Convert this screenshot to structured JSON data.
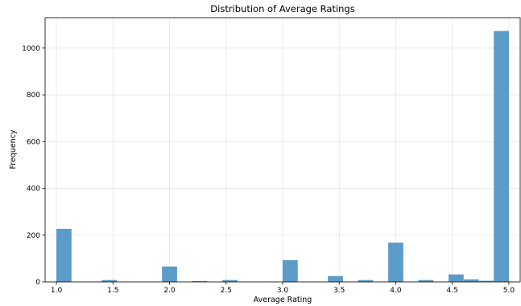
{
  "chart_data": {
    "type": "bar",
    "title": "Distribution of Average Ratings",
    "xlabel": "Average Rating",
    "ylabel": "Frequency",
    "xlim": [
      0.9,
      5.1
    ],
    "ylim": [
      0,
      1130
    ],
    "xticks": [
      "1.0",
      "1.5",
      "2.0",
      "2.5",
      "3.0",
      "3.5",
      "4.0",
      "4.5",
      "5.0"
    ],
    "yticks": [
      "0",
      "200",
      "400",
      "600",
      "800",
      "1000"
    ],
    "grid": true,
    "bin_width": 0.1333,
    "bar_color": "#5b9bc8",
    "bins": [
      {
        "x": 1.0667,
        "count": 227
      },
      {
        "x": 1.2,
        "count": 0
      },
      {
        "x": 1.3333,
        "count": 0
      },
      {
        "x": 1.4667,
        "count": 8
      },
      {
        "x": 1.6,
        "count": 0
      },
      {
        "x": 1.7333,
        "count": 0
      },
      {
        "x": 1.8667,
        "count": 0
      },
      {
        "x": 2.0,
        "count": 66
      },
      {
        "x": 2.1333,
        "count": 0
      },
      {
        "x": 2.2667,
        "count": 4
      },
      {
        "x": 2.4,
        "count": 0
      },
      {
        "x": 2.5333,
        "count": 8
      },
      {
        "x": 2.6667,
        "count": 0
      },
      {
        "x": 2.8,
        "count": 0
      },
      {
        "x": 2.9333,
        "count": 0
      },
      {
        "x": 3.0667,
        "count": 93
      },
      {
        "x": 3.2,
        "count": 0
      },
      {
        "x": 3.3333,
        "count": 0
      },
      {
        "x": 3.4667,
        "count": 25
      },
      {
        "x": 3.6,
        "count": 0
      },
      {
        "x": 3.7333,
        "count": 8
      },
      {
        "x": 3.8667,
        "count": 0
      },
      {
        "x": 4.0,
        "count": 168
      },
      {
        "x": 4.1333,
        "count": 0
      },
      {
        "x": 4.2667,
        "count": 8
      },
      {
        "x": 4.4,
        "count": 0
      },
      {
        "x": 4.5333,
        "count": 32
      },
      {
        "x": 4.6667,
        "count": 11
      },
      {
        "x": 4.8,
        "count": 5
      },
      {
        "x": 4.9333,
        "count": 1073
      }
    ]
  }
}
